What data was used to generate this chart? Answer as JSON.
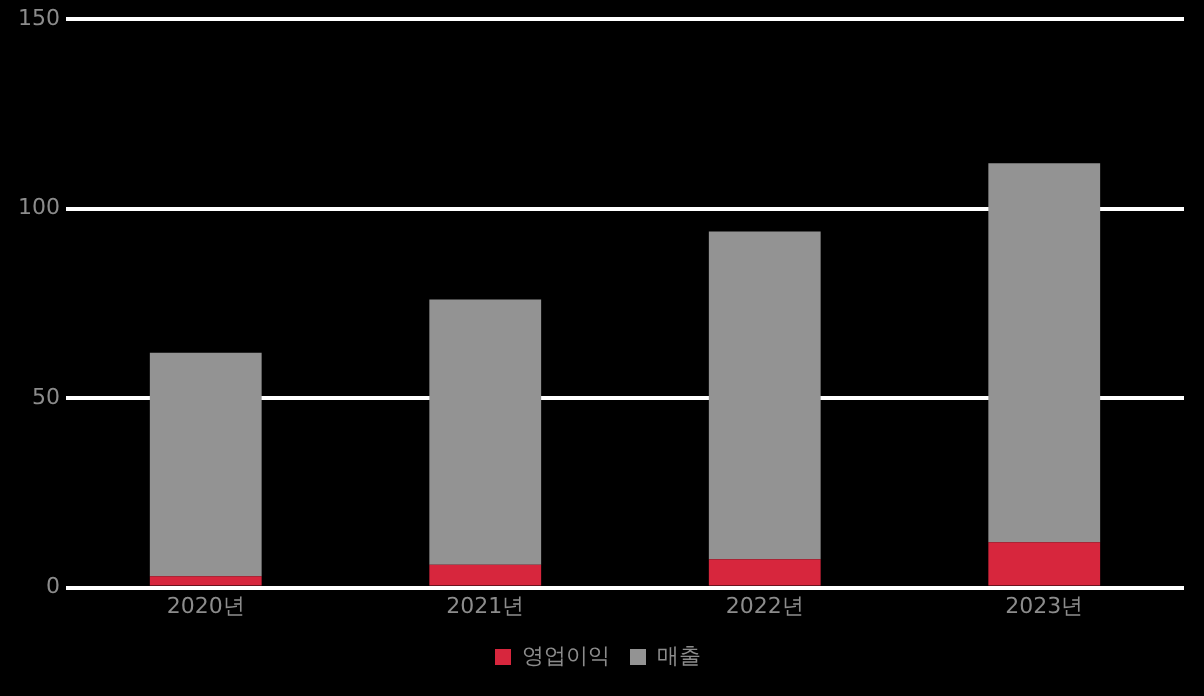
{
  "chart_data": {
    "type": "bar",
    "stacked": true,
    "categories": [
      "2020년",
      "2021년",
      "2022년",
      "2023년"
    ],
    "series": [
      {
        "name": "영업이익",
        "color": "#d7263d",
        "values": [
          3,
          6,
          7.5,
          12
        ]
      },
      {
        "name": "매출",
        "color": "#939393",
        "values": [
          59,
          70,
          86.5,
          100
        ]
      }
    ],
    "ylim": [
      0,
      150
    ],
    "yticks": [
      0,
      50,
      100,
      150
    ],
    "grid": "y",
    "legend": "bottom"
  }
}
